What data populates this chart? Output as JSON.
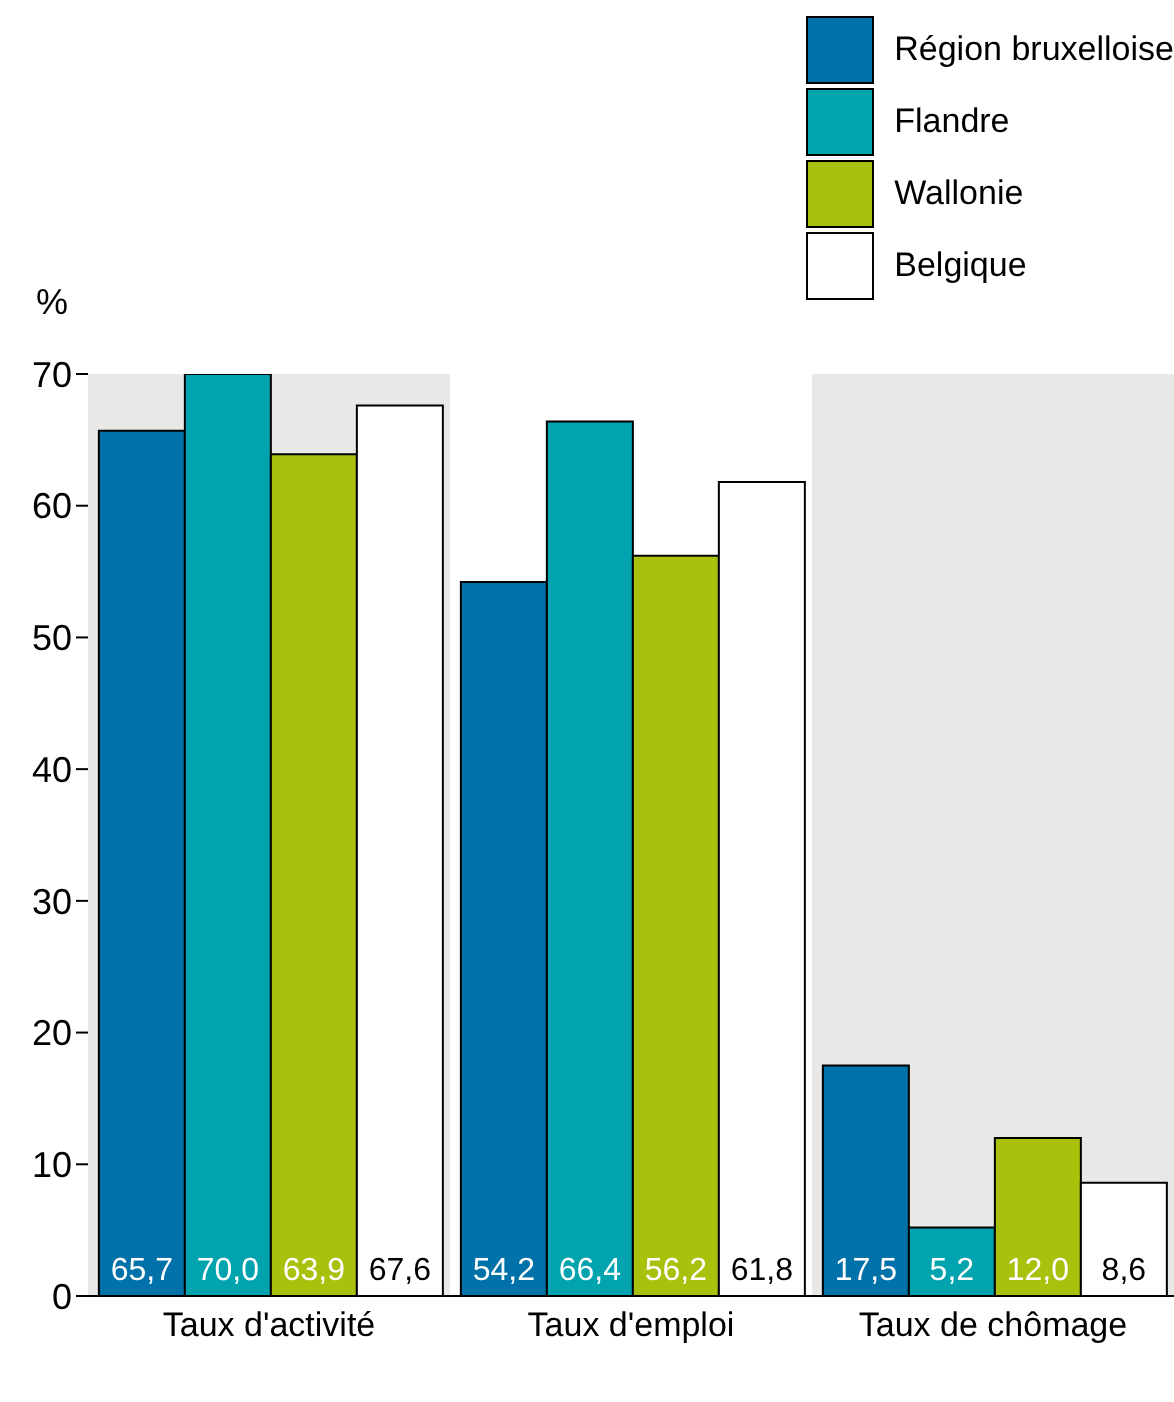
{
  "chart_data": {
    "type": "bar",
    "ylabel": "%",
    "categories": [
      "Taux d'activité",
      "Taux d'emploi",
      "Taux de chômage"
    ],
    "series": [
      {
        "name": "Région bruxelloise",
        "color": "#0071a9",
        "values": [
          65.7,
          54.2,
          17.5
        ]
      },
      {
        "name": "Flandre",
        "color": "#00a3ae",
        "values": [
          70.0,
          66.4,
          5.2
        ]
      },
      {
        "name": "Wallonie",
        "color": "#a9c00c",
        "values": [
          63.9,
          56.2,
          12.0
        ]
      },
      {
        "name": "Belgique",
        "color": "#ffffff",
        "values": [
          67.6,
          61.8,
          8.6
        ]
      }
    ],
    "value_labels": [
      [
        "65,7",
        "54,2",
        "17,5"
      ],
      [
        "70,0",
        "66,4",
        "5,2"
      ],
      [
        "63,9",
        "56,2",
        "12,0"
      ],
      [
        "67,6",
        "61,8",
        "8,6"
      ]
    ],
    "ylim": [
      0,
      70
    ],
    "yticks": [
      0,
      10,
      20,
      30,
      40,
      50,
      60,
      70
    ],
    "grid": false,
    "legend": "top right",
    "bands": [
      {
        "axis": "x",
        "from": "Taux d'activité",
        "to": "Taux d'activité",
        "color": "#e8e8e7"
      },
      {
        "axis": "x",
        "from": "Taux de chômage",
        "to": "Taux de chômage",
        "color": "#e8e8e7"
      }
    ]
  }
}
